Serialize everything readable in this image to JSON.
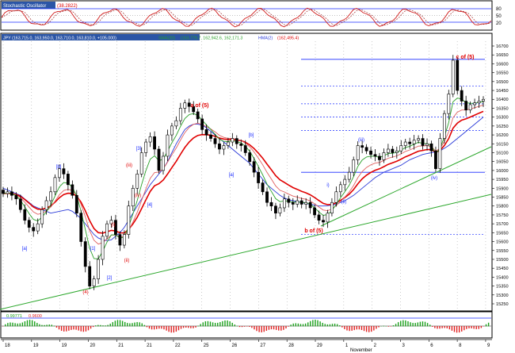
{
  "colors": {
    "frame": "#000000",
    "header_bg": "#2b55a6",
    "header_text": "#ffffff",
    "grid": "#9a9a9a",
    "candle": "#000000",
    "ema_fast": "#2aa02a",
    "ema_mid": "#e06060",
    "ema_red": "#e00000",
    "ema_blue": "#2a3ad8",
    "level": "#1a2cff",
    "trend": "#2ea82e",
    "label_red": "#e00000",
    "label_blue": "#1a2cff",
    "osc_red": "#d01c1c",
    "osc_dash": "#a03030",
    "hist_green": "#1aa01a",
    "hist_red": "#e02020"
  },
  "panels": {
    "stochastic": {
      "title": "Stochastic Oscillator",
      "value": "(38.2822)",
      "levels": [
        "80",
        "50",
        "20"
      ]
    },
    "price": {
      "title": "JPY (163,715.0, 163,950.0, 163,710.0, 163,810.0, +105.000)",
      "sma_label": "SMA(20)",
      "sma_value": "(163,779.7, 162,942.6, 162,171.3",
      "hma_label": "HMA(2)",
      "hma_value": "(162,495.4)"
    },
    "macd": {
      "value_green": "0.99771",
      "value_red": "0.9600"
    }
  },
  "chart_data": {
    "type": "candlestick",
    "y_axis": {
      "ylim": [
        15225,
        16725
      ],
      "ticks": [
        "16700",
        "16650",
        "16600",
        "16550",
        "16500",
        "16450",
        "16400",
        "16350",
        "16300",
        "16250",
        "16200",
        "16150",
        "16100",
        "16050",
        "16000",
        "15950",
        "15900",
        "15850",
        "15800",
        "15750",
        "15700",
        "15650",
        "15600",
        "15550",
        "15500",
        "15450",
        "15400",
        "15350",
        "15300",
        "15250"
      ]
    },
    "x_axis": {
      "ticks": [
        "18",
        "19",
        "19",
        "20",
        "21",
        "21",
        "22",
        "25",
        "26",
        "27",
        "28",
        "29",
        "1",
        "2",
        "3",
        "6",
        "8",
        "9"
      ],
      "month_label": "November"
    },
    "close": [
      15870,
      15880,
      15860,
      15840,
      15780,
      15720,
      15680,
      15660,
      15700,
      15780,
      15830,
      15880,
      15960,
      16010,
      15980,
      15920,
      15860,
      15760,
      15600,
      15460,
      15350,
      15390,
      15500,
      15630,
      15700,
      15720,
      15640,
      15580,
      15640,
      15800,
      15900,
      15980,
      16100,
      16160,
      16190,
      16120,
      16000,
      16080,
      16200,
      16250,
      16280,
      16350,
      16380,
      16360,
      16330,
      16290,
      16230,
      16200,
      16180,
      16150,
      16120,
      16140,
      16160,
      16180,
      16150,
      16140,
      16100,
      16050,
      15990,
      15930,
      15880,
      15820,
      15800,
      15760,
      15790,
      15840,
      15820,
      15810,
      15830,
      15810,
      15820,
      15790,
      15750,
      15720,
      15710,
      15760,
      15820,
      15880,
      15920,
      15950,
      15990,
      16060,
      16140,
      16130,
      16110,
      16090,
      16080,
      16060,
      16100,
      16120,
      16100,
      16110,
      16140,
      16160,
      16150,
      16170,
      16180,
      16140,
      16150,
      16110,
      16010,
      16180,
      16320,
      16430,
      16620,
      16450,
      16390,
      16340,
      16370,
      16380,
      16390,
      16400
    ],
    "series": [
      {
        "name": "SMA(20)",
        "values": [
          15900,
          15890,
          15880,
          15870,
          15860,
          15840,
          15820,
          15800,
          15790,
          15780,
          15770,
          15760,
          15765,
          15770,
          15775,
          15780,
          15770,
          15750,
          15730,
          15700,
          15670,
          15640,
          15620,
          15610,
          15605,
          15610,
          15630,
          15650,
          15680,
          15720,
          15760,
          15800,
          15840,
          15880,
          15920,
          15950,
          15980,
          16010,
          16050,
          16100,
          16150,
          16190,
          16230,
          16250,
          16260,
          16260,
          16255,
          16240,
          16220,
          16200,
          16180,
          16160,
          16140,
          16120,
          16100,
          16080,
          16060,
          16040,
          16010,
          15980,
          15950,
          15920,
          15900,
          15880,
          15860,
          15845,
          15835,
          15830,
          15825,
          15820,
          15815,
          15810,
          15805,
          15800,
          15800,
          15802,
          15805,
          15810,
          15820,
          15830,
          15845,
          15860,
          15880,
          15900,
          15920,
          15940,
          15960,
          15975,
          15990,
          16000,
          16010,
          16020,
          16030,
          16045,
          16060,
          16070,
          16080,
          16090,
          16095,
          16100,
          16105,
          16110,
          16125,
          16140,
          16160,
          16180,
          16200,
          16220,
          16240,
          16260,
          16280,
          16300
        ]
      }
    ],
    "annotations": [
      "[a]",
      "[b]",
      "[1]",
      "[2]",
      "(4)",
      "(i)",
      "(ii)",
      "(iii)",
      "(iv)",
      "[3]",
      "[4]",
      "a of (5)",
      "[a]",
      "[b]",
      "b of (5)",
      "i)",
      "(ii)",
      "(iii)",
      "(iv)",
      "c of (5)"
    ],
    "horizontal_levels": [
      16625,
      16475,
      16375,
      16300,
      16225,
      15990,
      15640
    ]
  }
}
